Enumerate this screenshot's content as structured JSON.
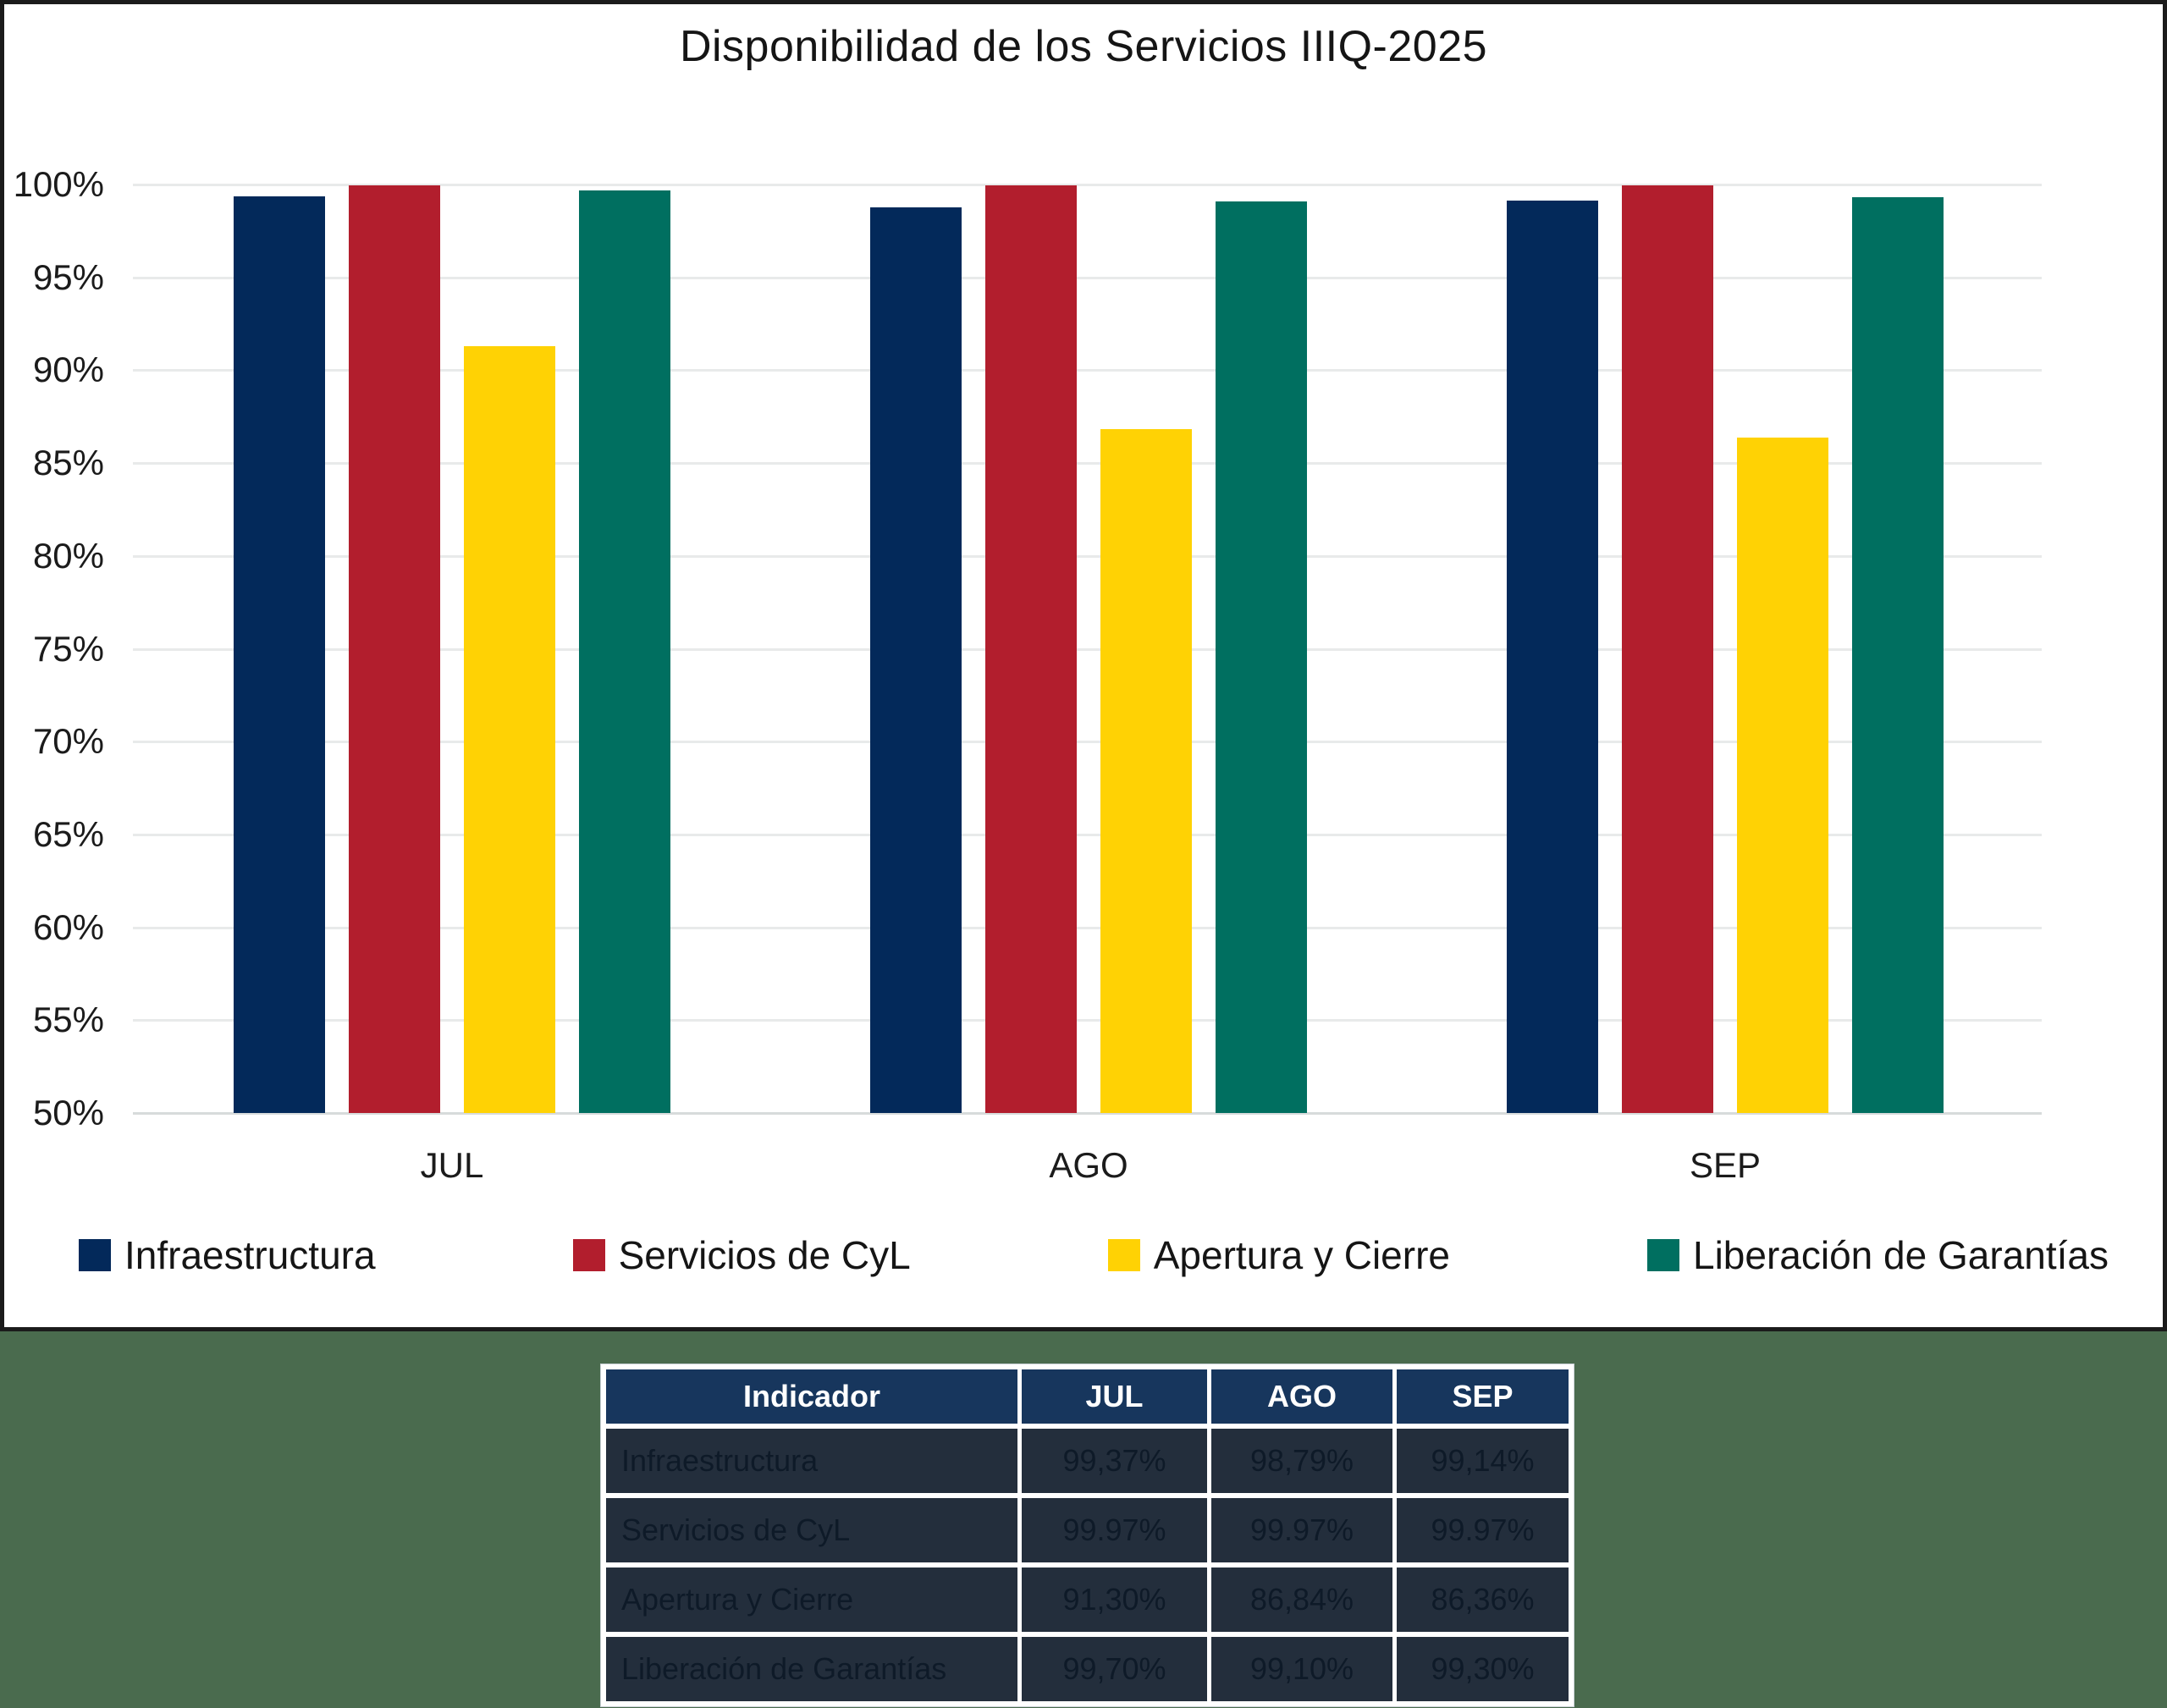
{
  "chart_data": {
    "type": "bar",
    "title": "Disponibilidad de los Servicios IIIQ-2025",
    "categories": [
      "JUL",
      "AGO",
      "SEP"
    ],
    "series": [
      {
        "name": "Infraestructura",
        "color": "#03295a",
        "values": [
          99.37,
          98.79,
          99.14
        ]
      },
      {
        "name": "Servicios de CyL",
        "color": "#b21e2d",
        "values": [
          99.97,
          99.97,
          99.97
        ]
      },
      {
        "name": "Apertura y Cierre",
        "color": "#ffd204",
        "values": [
          91.3,
          86.84,
          86.36
        ]
      },
      {
        "name": "Liberación de Garantías",
        "color": "#006f60",
        "values": [
          99.7,
          99.1,
          99.3
        ]
      }
    ],
    "ylim": [
      50,
      100
    ],
    "ytick_step": 5,
    "ytick_labels": [
      "100%",
      "95%",
      "90%",
      "85%",
      "80%",
      "75%",
      "70%",
      "65%",
      "60%",
      "55%",
      "50%"
    ],
    "grid": true,
    "legend_position": "bottom"
  },
  "table": {
    "header": [
      "Indicador",
      "JUL",
      "AGO",
      "SEP"
    ],
    "rows": [
      {
        "label": "Infraestructura",
        "values": [
          "99,37%",
          "98,79%",
          "99,14%"
        ]
      },
      {
        "label": "Servicios de CyL",
        "values": [
          "99.97%",
          "99.97%",
          "99.97%"
        ]
      },
      {
        "label": "Apertura y Cierre",
        "values": [
          "91,30%",
          "86,84%",
          "86,36%"
        ]
      },
      {
        "label": "Liberación de Garantías",
        "values": [
          "99,70%",
          "99,10%",
          "99,30%"
        ]
      }
    ]
  },
  "colors": {
    "panel_background": "#ffffff",
    "panel_border": "#1b1b1b",
    "section_background": "#4a6b4e",
    "gridline": "#e8eaea",
    "axis_text": "#1b1b1b",
    "table_header_background": "#17365d",
    "table_header_text": "#ffffff",
    "table_row_background": "#232e3c",
    "table_row_text": "#0e1a28"
  }
}
